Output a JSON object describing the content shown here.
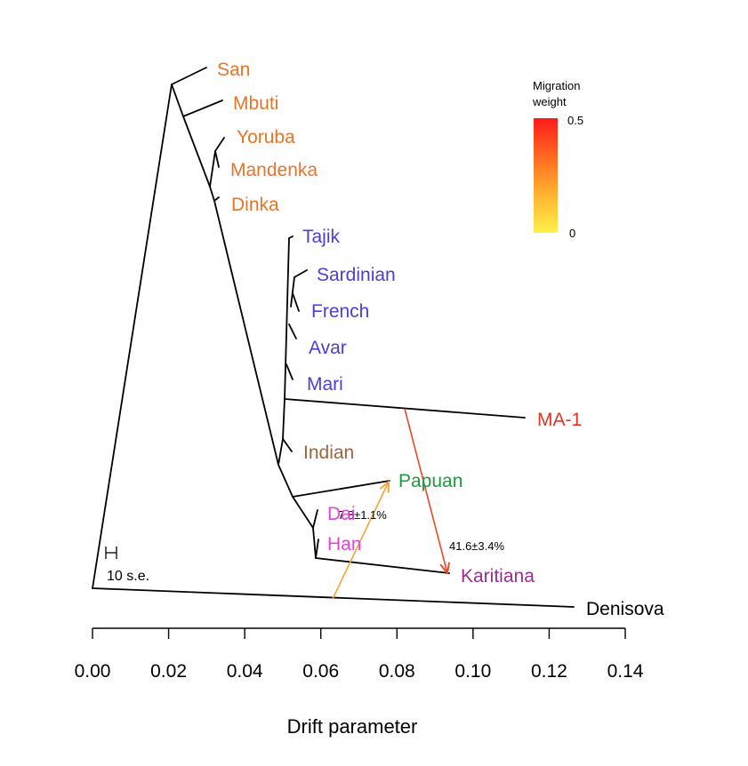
{
  "chart_data": {
    "type": "tree",
    "xlabel": "Drift parameter",
    "xlim": [
      0.0,
      0.14
    ],
    "x_ticks": [
      "0.00",
      "0.02",
      "0.04",
      "0.06",
      "0.08",
      "0.10",
      "0.12",
      "0.14"
    ],
    "colors": {
      "african": "#e8742a",
      "west_eurasian": "#4b3fd6",
      "south_asian": "#a0643c",
      "ancient": "#e53222",
      "oceanian": "#1d9a3a",
      "east_asian": "#e841d6",
      "american": "#9b2f8e",
      "outgroup": "#000000"
    },
    "populations": [
      {
        "name": "San",
        "group": "african"
      },
      {
        "name": "Mbuti",
        "group": "african"
      },
      {
        "name": "Yoruba",
        "group": "african"
      },
      {
        "name": "Mandenka",
        "group": "african"
      },
      {
        "name": "Dinka",
        "group": "african"
      },
      {
        "name": "Tajik",
        "group": "west_eurasian"
      },
      {
        "name": "Sardinian",
        "group": "west_eurasian"
      },
      {
        "name": "French",
        "group": "west_eurasian"
      },
      {
        "name": "Avar",
        "group": "west_eurasian"
      },
      {
        "name": "Mari",
        "group": "west_eurasian"
      },
      {
        "name": "MA-1",
        "group": "ancient"
      },
      {
        "name": "Indian",
        "group": "south_asian"
      },
      {
        "name": "Papuan",
        "group": "oceanian"
      },
      {
        "name": "Dai",
        "group": "east_asian"
      },
      {
        "name": "Han",
        "group": "east_asian"
      },
      {
        "name": "Karitiana",
        "group": "american"
      },
      {
        "name": "Denisova",
        "group": "outgroup"
      }
    ],
    "migrations": [
      {
        "from": "MA-1",
        "to": "Karitiana",
        "label": "41.6±3.4%",
        "weight": 0.42
      },
      {
        "from": "Denisova",
        "to": "Papuan",
        "label": "7.8±1.1%",
        "weight": 0.08
      }
    ],
    "legend": {
      "title_line1": "Migration",
      "title_line2": "weight",
      "max_label": "0.5",
      "min_label": "0",
      "colors": [
        "#fff04a",
        "#ffb030",
        "#ff6020",
        "#ff1a1a"
      ]
    },
    "scale_bar_label": "10 s.e."
  }
}
